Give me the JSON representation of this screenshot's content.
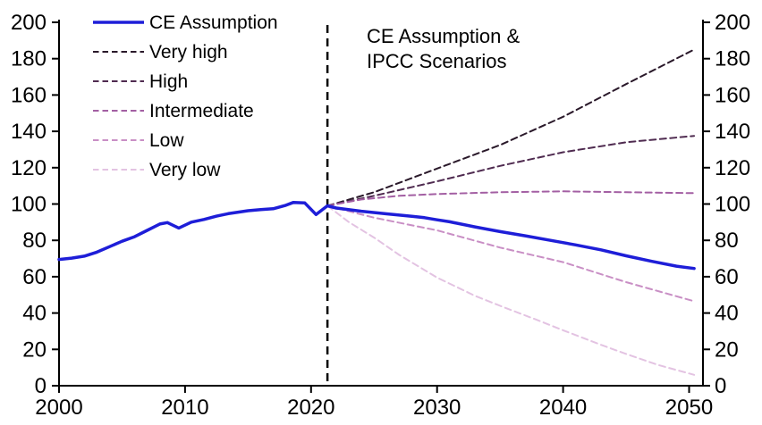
{
  "chart_data": {
    "type": "line",
    "title_lines": [
      "CE Assumption &",
      "IPCC Scenarios"
    ],
    "background": "#ffffff",
    "text_color": "#000000",
    "axis_color": "#000000",
    "x_axis": {
      "range": [
        2000,
        2051.1
      ],
      "ticks": [
        2000,
        2010,
        2020,
        2030,
        2040,
        2050
      ]
    },
    "y_axis": {
      "range": [
        0,
        200
      ],
      "ticks": [
        0,
        20,
        40,
        60,
        80,
        100,
        120,
        140,
        160,
        180,
        200
      ],
      "sides": [
        "left",
        "right"
      ],
      "grid": false
    },
    "forecast_divider": {
      "x": 2021.3,
      "color": "#000000",
      "style": "dashed"
    },
    "legend": {
      "position": "top-left",
      "entries": [
        "CE Assumption",
        "Very high",
        "High",
        "Intermediate",
        "Low",
        "Very low"
      ]
    },
    "series": [
      {
        "name": "CE Assumption",
        "color": "#1e1ed8",
        "style": "solid",
        "width": 3.5,
        "points": [
          [
            2000,
            69.5
          ],
          [
            2001,
            70.2
          ],
          [
            2002,
            71.3
          ],
          [
            2003,
            73.5
          ],
          [
            2004,
            76.5
          ],
          [
            2005,
            79.5
          ],
          [
            2006,
            82
          ],
          [
            2007,
            85.5
          ],
          [
            2008,
            89
          ],
          [
            2008.6,
            89.8
          ],
          [
            2009.5,
            86.8
          ],
          [
            2010.5,
            90
          ],
          [
            2011.5,
            91.5
          ],
          [
            2012.5,
            93.3
          ],
          [
            2013.5,
            94.8
          ],
          [
            2015,
            96.3
          ],
          [
            2016,
            96.9
          ],
          [
            2017,
            97.4
          ],
          [
            2018,
            99.3
          ],
          [
            2018.6,
            100.9
          ],
          [
            2019.5,
            100.6
          ],
          [
            2020.4,
            94.2
          ],
          [
            2021.3,
            99
          ],
          [
            2022,
            97.8
          ],
          [
            2024,
            96
          ],
          [
            2026,
            94.6
          ],
          [
            2028,
            93.2
          ],
          [
            2029,
            92.5
          ],
          [
            2030,
            91.3
          ],
          [
            2031,
            90.2
          ],
          [
            2033,
            87.4
          ],
          [
            2035,
            84.8
          ],
          [
            2037,
            82.5
          ],
          [
            2039,
            80
          ],
          [
            2041,
            77.5
          ],
          [
            2043,
            74.8
          ],
          [
            2045,
            71.5
          ],
          [
            2047,
            68.5
          ],
          [
            2049,
            65.8
          ],
          [
            2050.4,
            64.5
          ]
        ]
      },
      {
        "name": "Very high",
        "color": "#2a192a",
        "style": "dashed",
        "width": 2,
        "points": [
          [
            2021.3,
            99
          ],
          [
            2025,
            106.5
          ],
          [
            2030,
            119.5
          ],
          [
            2035,
            132.5
          ],
          [
            2040,
            148
          ],
          [
            2045,
            166
          ],
          [
            2050.4,
            185
          ]
        ]
      },
      {
        "name": "High",
        "color": "#4f2b50",
        "style": "dashed",
        "width": 2,
        "points": [
          [
            2021.3,
            99
          ],
          [
            2025,
            104.5
          ],
          [
            2030,
            112.5
          ],
          [
            2035,
            121
          ],
          [
            2040,
            128.5
          ],
          [
            2045,
            134
          ],
          [
            2050.4,
            137.5
          ]
        ]
      },
      {
        "name": "Intermediate",
        "color": "#a35fa3",
        "style": "dashed",
        "width": 2,
        "points": [
          [
            2021.3,
            99
          ],
          [
            2024,
            102.5
          ],
          [
            2027,
            104.5
          ],
          [
            2030,
            105.5
          ],
          [
            2035,
            106.5
          ],
          [
            2040,
            107
          ],
          [
            2045,
            106.5
          ],
          [
            2050.4,
            106
          ]
        ]
      },
      {
        "name": "Low",
        "color": "#c98fc5",
        "style": "dashed",
        "width": 2,
        "points": [
          [
            2021.3,
            99
          ],
          [
            2025,
            92.5
          ],
          [
            2030,
            85.5
          ],
          [
            2035,
            76
          ],
          [
            2040,
            68
          ],
          [
            2045,
            57
          ],
          [
            2050.4,
            46.5
          ]
        ]
      },
      {
        "name": "Very low",
        "color": "#e3c3e2",
        "style": "dashed",
        "width": 2,
        "points": [
          [
            2021.3,
            99
          ],
          [
            2023,
            90
          ],
          [
            2025,
            81.5
          ],
          [
            2027,
            72
          ],
          [
            2030,
            59.5
          ],
          [
            2033,
            49.5
          ],
          [
            2035,
            44
          ],
          [
            2038,
            36
          ],
          [
            2040,
            30.5
          ],
          [
            2043,
            22.5
          ],
          [
            2045,
            17.5
          ],
          [
            2047.5,
            11.5
          ],
          [
            2050.4,
            6
          ]
        ]
      }
    ]
  }
}
